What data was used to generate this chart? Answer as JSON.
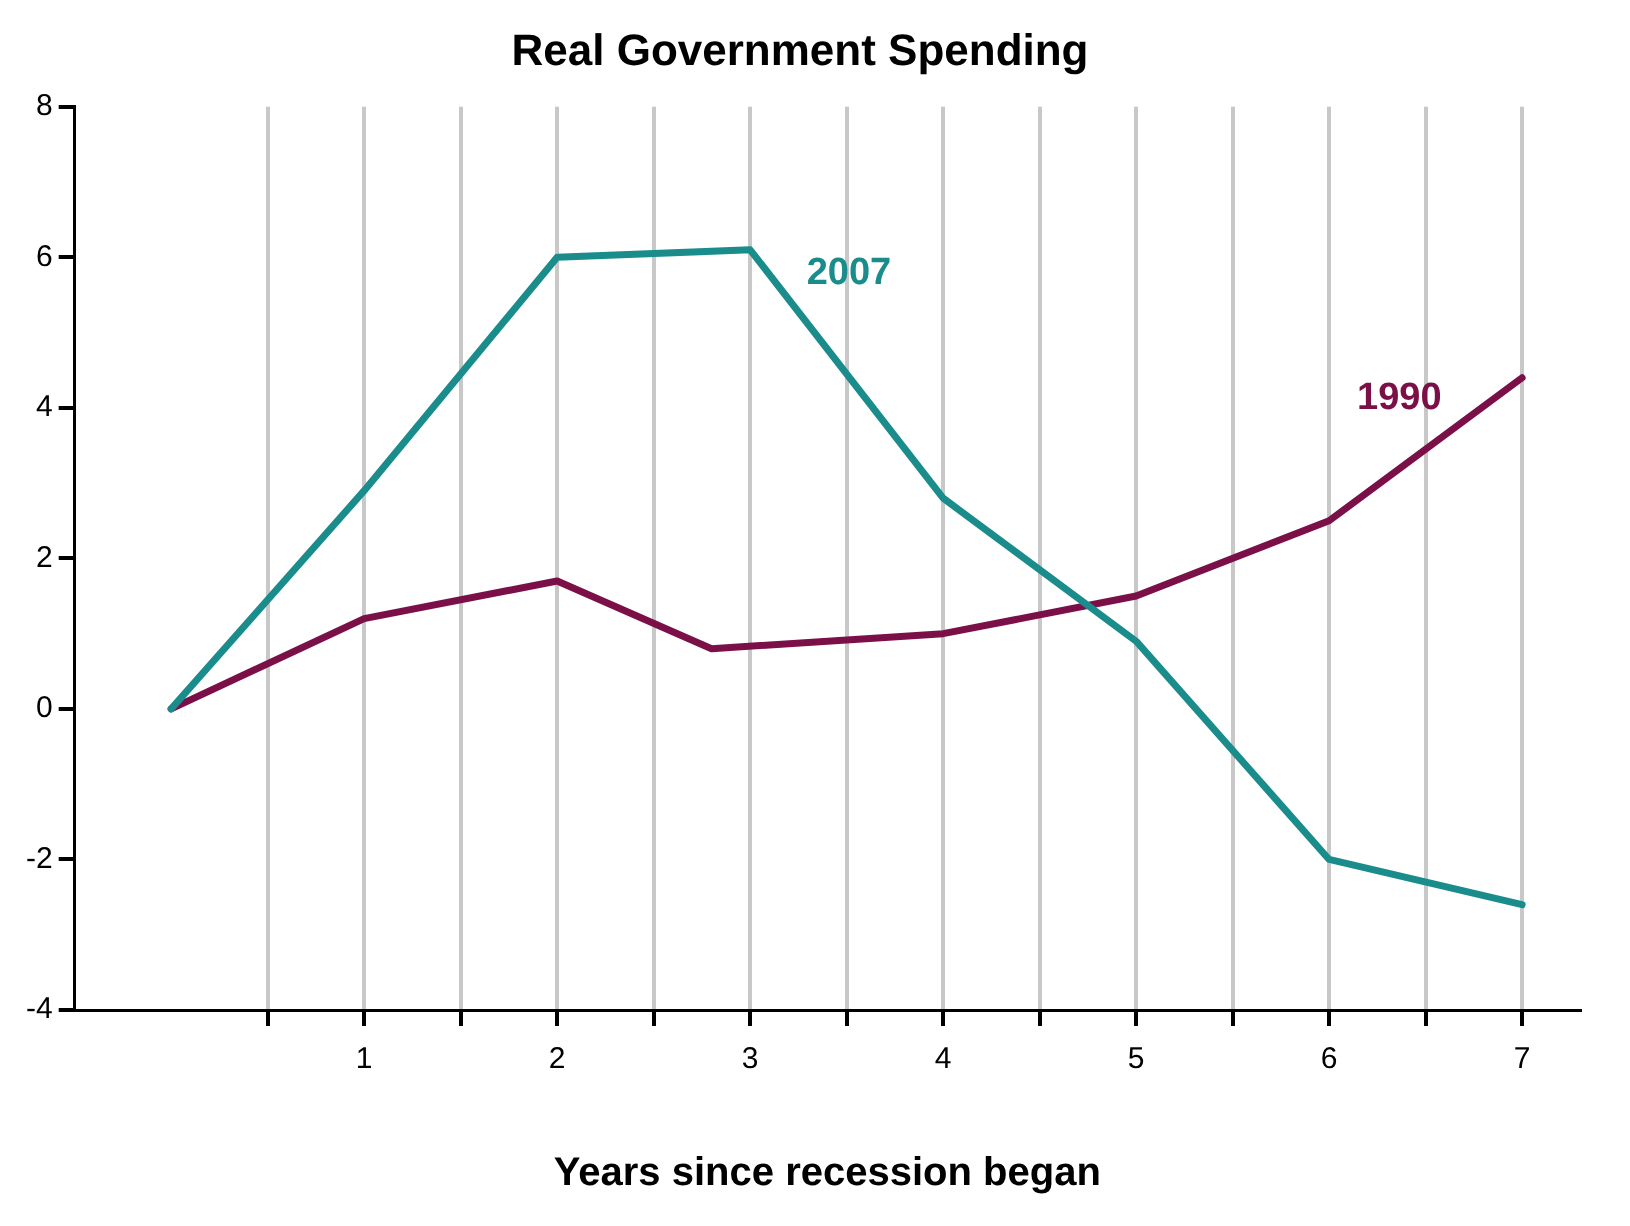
{
  "chart_data": {
    "type": "line",
    "title": "Real Government Spending",
    "xlabel": "Years since recession began",
    "xlim": [
      -0.5,
      7.3
    ],
    "xticks": [
      {
        "value": 0.5,
        "label": null
      },
      1,
      {
        "value": 1.5,
        "label": null
      },
      2,
      {
        "value": 2.5,
        "label": null
      },
      3,
      {
        "value": 3.5,
        "label": null
      },
      4,
      {
        "value": 4.5,
        "label": null
      },
      5,
      {
        "value": 5.5,
        "label": null
      },
      6,
      {
        "value": 6.5,
        "label": null
      },
      7
    ],
    "ylim": [
      -4,
      8
    ],
    "yticks": [
      -4,
      -2,
      0,
      2,
      4,
      6,
      8
    ],
    "grid": "x",
    "legend": false,
    "marker": "none",
    "line_style": "solid",
    "series": [
      {
        "name": "2007",
        "color": "#1a8c8c",
        "x": [
          0,
          1,
          2,
          3,
          4,
          5,
          6,
          7
        ],
        "values": [
          0,
          2.9,
          6.0,
          6.1,
          2.8,
          0.9,
          -2.0,
          -2.6
        ]
      },
      {
        "name": "1990",
        "color": "#7b1048",
        "x": [
          0,
          1,
          2,
          2.8,
          4,
          5,
          6,
          7
        ],
        "values": [
          0,
          1.2,
          1.7,
          0.8,
          1.0,
          1.5,
          2.5,
          4.4
        ]
      }
    ]
  }
}
